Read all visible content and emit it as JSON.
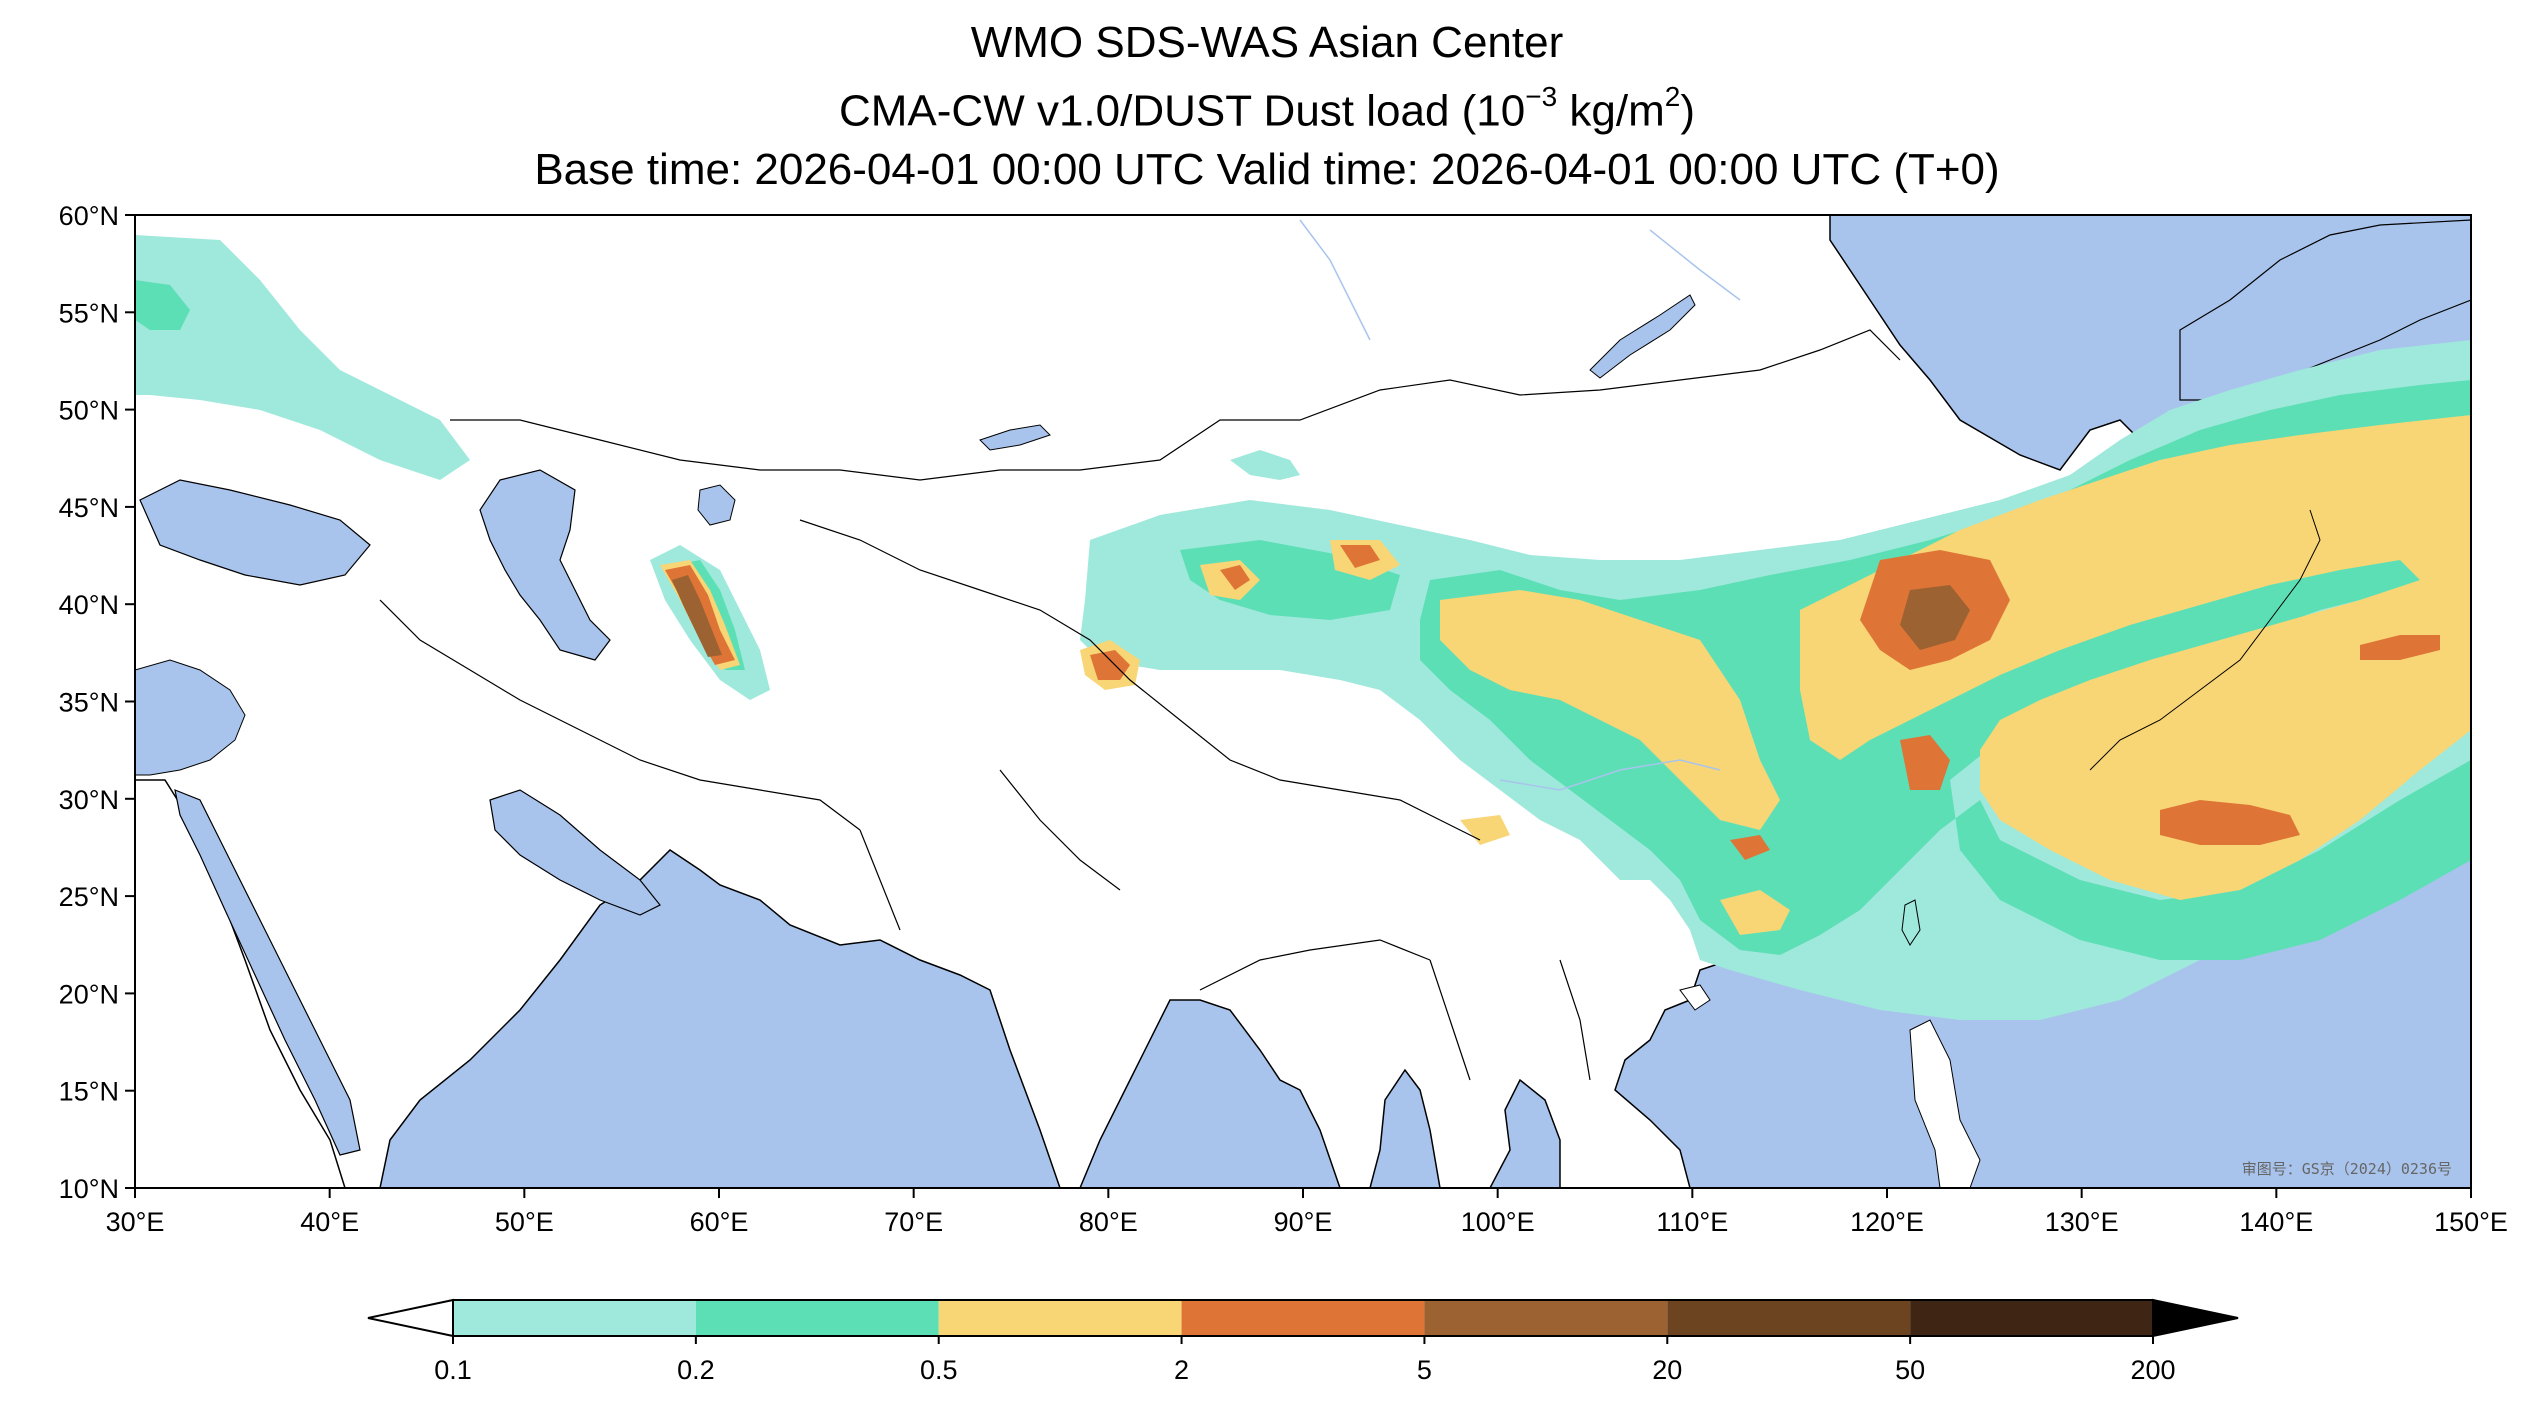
{
  "title": {
    "line1": "WMO SDS-WAS Asian Center",
    "line2_prefix": "CMA-CW v1.0/DUST Dust load (10",
    "line2_exp1": "−3",
    "line2_mid": " kg/m",
    "line2_exp2": "2",
    "line2_suffix": ")",
    "line3": "Base time: 2026-04-01 00:00 UTC Valid time: 2026-04-01 00:00 UTC (T+0)"
  },
  "map": {
    "lon_range": [
      30,
      150
    ],
    "lat_range": [
      10,
      60
    ],
    "lon_ticks": [
      "30°E",
      "40°E",
      "50°E",
      "60°E",
      "70°E",
      "80°E",
      "90°E",
      "100°E",
      "110°E",
      "120°E",
      "130°E",
      "140°E",
      "150°E"
    ],
    "lat_ticks": [
      "60°N",
      "55°N",
      "50°N",
      "45°N",
      "40°N",
      "35°N",
      "30°N",
      "25°N",
      "20°N",
      "15°N",
      "10°N"
    ],
    "approval_number": "审图号：GS京（2024）0236号",
    "ocean_color": "#a9c4ec",
    "land_color": "#ffffff"
  },
  "colorbar": {
    "levels": [
      "0.1",
      "0.2",
      "0.5",
      "2",
      "5",
      "20",
      "50",
      "200"
    ],
    "colors": [
      "#9fe8dc",
      "#5ddfb5",
      "#f8d676",
      "#de7537",
      "#9c6231",
      "#6c4520",
      "#3f2614"
    ],
    "extend": "both"
  }
}
